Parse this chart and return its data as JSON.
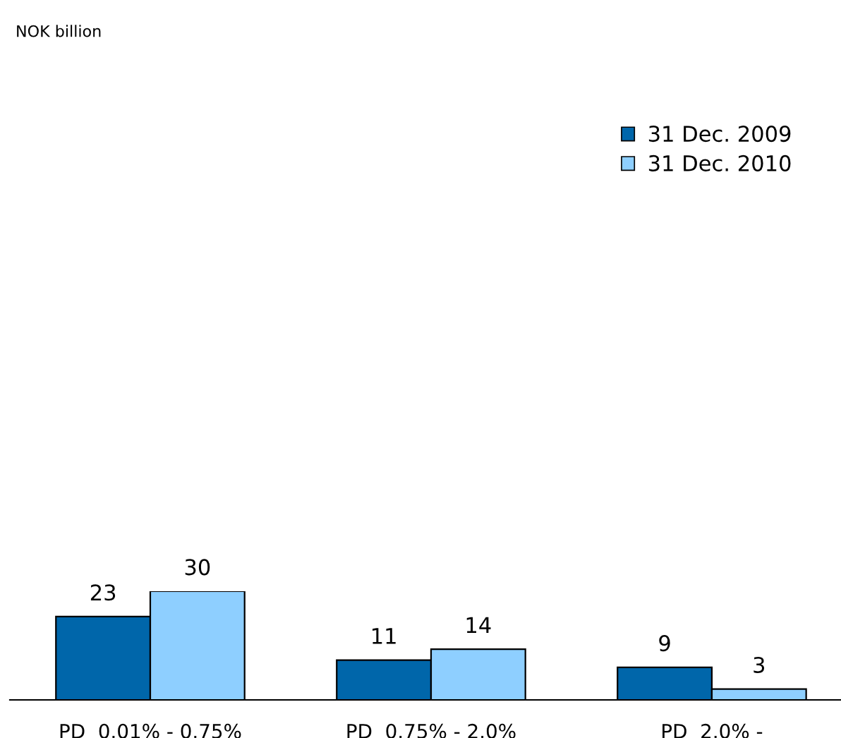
{
  "chart_data": {
    "type": "bar",
    "subtitle": "NOK billion",
    "categories": [
      "PD  0.01% - 0.75%",
      "PD  0.75% - 2.0%",
      "PD  2.0% -"
    ],
    "series": [
      {
        "name": "31 Dec. 2009",
        "color": "#0066aa",
        "values": [
          23,
          11,
          9
        ]
      },
      {
        "name": "31 Dec. 2010",
        "color": "#8ecfff",
        "values": [
          30,
          14,
          3
        ]
      }
    ],
    "data_labels": true,
    "legend": "top right",
    "grid": false,
    "tick_labels": "x"
  }
}
